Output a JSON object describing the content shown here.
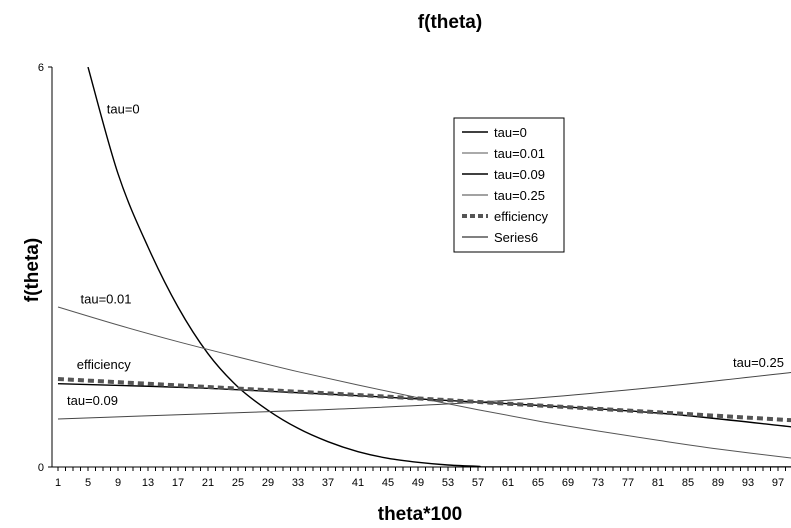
{
  "chart_data": {
    "type": "line",
    "title": "f(theta)",
    "xlabel": "theta*100",
    "ylabel": "f(theta)",
    "x_ticks": [
      1,
      5,
      9,
      13,
      17,
      21,
      25,
      29,
      33,
      37,
      41,
      45,
      49,
      53,
      57,
      61,
      65,
      69,
      73,
      77,
      81,
      85,
      89,
      93,
      97
    ],
    "xlim": [
      1,
      99
    ],
    "ylim": [
      0,
      6
    ],
    "y_ticks": [
      0,
      6
    ],
    "grid": false,
    "legend_position": "upper-center",
    "series": [
      {
        "name": "tau=0",
        "color": "#000000",
        "width": 1.4,
        "dash": "",
        "points": [
          [
            5,
            6.0
          ],
          [
            9,
            4.4
          ],
          [
            13,
            3.3
          ],
          [
            17,
            2.4
          ],
          [
            21,
            1.7
          ],
          [
            25,
            1.2
          ],
          [
            29,
            0.85
          ],
          [
            33,
            0.58
          ],
          [
            37,
            0.38
          ],
          [
            41,
            0.23
          ],
          [
            45,
            0.13
          ],
          [
            49,
            0.07
          ],
          [
            53,
            0.03
          ],
          [
            57,
            0.01
          ],
          [
            61,
            0.0
          ],
          [
            99,
            0.0
          ]
        ]
      },
      {
        "name": "tau=0.01",
        "color": "#555555",
        "width": 1.0,
        "dash": "",
        "points": [
          [
            1,
            2.4
          ],
          [
            9,
            2.13
          ],
          [
            17,
            1.88
          ],
          [
            25,
            1.65
          ],
          [
            33,
            1.43
          ],
          [
            41,
            1.23
          ],
          [
            49,
            1.04
          ],
          [
            57,
            0.86
          ],
          [
            65,
            0.69
          ],
          [
            73,
            0.54
          ],
          [
            81,
            0.4
          ],
          [
            89,
            0.27
          ],
          [
            99,
            0.13
          ]
        ]
      },
      {
        "name": "tau=0.09",
        "color": "#000000",
        "width": 1.4,
        "dash": "",
        "points": [
          [
            1,
            1.25
          ],
          [
            21,
            1.18
          ],
          [
            41,
            1.07
          ],
          [
            61,
            0.95
          ],
          [
            81,
            0.81
          ],
          [
            99,
            0.6
          ]
        ]
      },
      {
        "name": "tau=0.25",
        "color": "#444444",
        "width": 1.0,
        "dash": "",
        "points": [
          [
            1,
            0.72
          ],
          [
            21,
            0.8
          ],
          [
            41,
            0.88
          ],
          [
            61,
            1.0
          ],
          [
            81,
            1.2
          ],
          [
            99,
            1.42
          ]
        ]
      },
      {
        "name": "efficiency",
        "color": "#555555",
        "width": 4,
        "dash": "6,4",
        "points": [
          [
            1,
            1.32
          ],
          [
            21,
            1.2
          ],
          [
            41,
            1.08
          ],
          [
            61,
            0.95
          ],
          [
            81,
            0.82
          ],
          [
            99,
            0.7
          ]
        ]
      },
      {
        "name": "Series6",
        "color": "#000000",
        "width": 1.0,
        "dash": "",
        "points": []
      }
    ],
    "annotations": [
      {
        "text": "tau=0",
        "x": 7.5,
        "y": 5.3
      },
      {
        "text": "tau=0.01",
        "x": 4,
        "y": 2.45
      },
      {
        "text": "efficiency",
        "x": 3.5,
        "y": 1.47
      },
      {
        "text": "tau=0.09",
        "x": 2.2,
        "y": 0.93
      },
      {
        "text": "tau=0.25",
        "x": 91,
        "y": 1.5
      }
    ]
  }
}
